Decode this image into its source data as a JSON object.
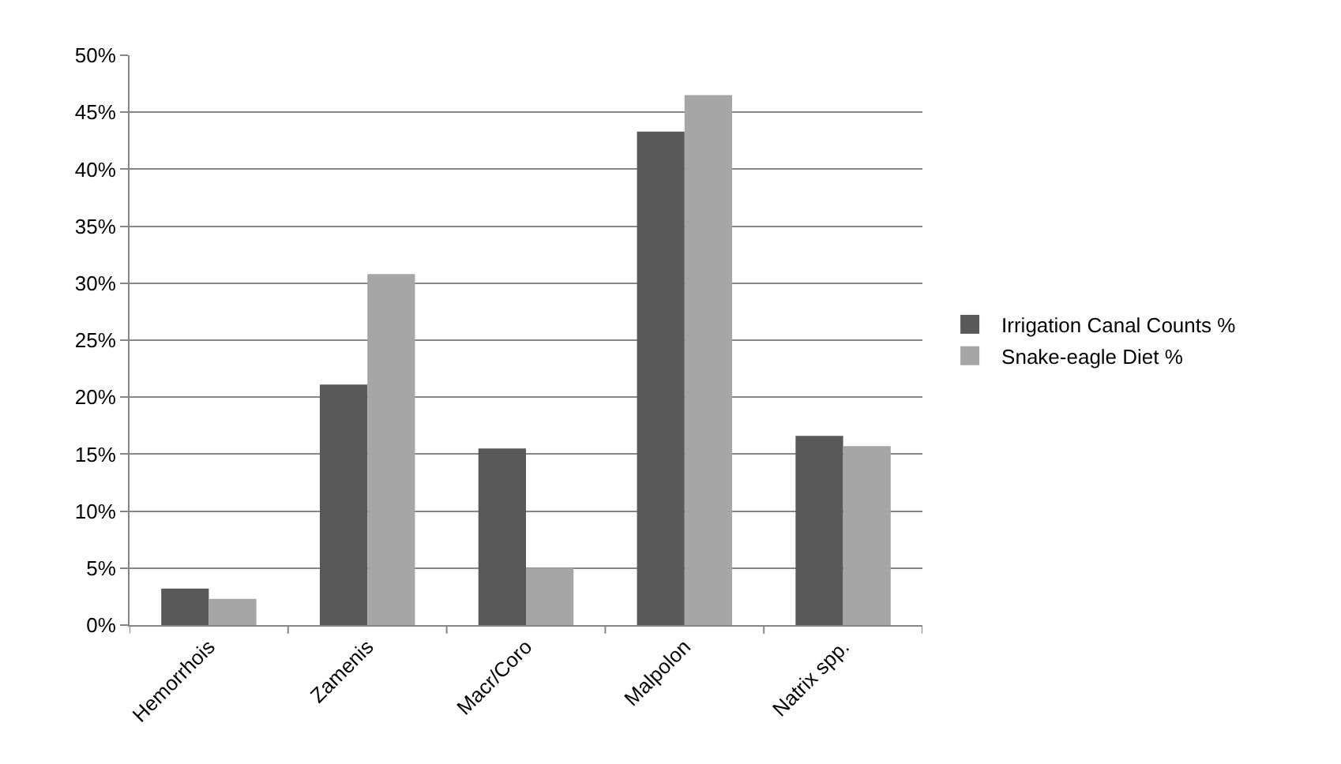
{
  "chart_data": {
    "type": "bar",
    "categories": [
      "Hemorrhois",
      "Zamenis",
      "Macr/Coro",
      "Malpolon",
      "Natrix spp."
    ],
    "series": [
      {
        "name": "Irrigation Canal Counts %",
        "color": "#595959",
        "values": [
          3.2,
          21.1,
          15.5,
          43.3,
          16.6
        ]
      },
      {
        "name": "Snake-eagle Diet %",
        "color": "#a6a6a6",
        "values": [
          2.3,
          30.8,
          5.0,
          46.5,
          15.7
        ]
      }
    ],
    "ylim": [
      0,
      50
    ],
    "yticks": [
      {
        "value": 0,
        "label": "0%"
      },
      {
        "value": 5,
        "label": "5%"
      },
      {
        "value": 10,
        "label": "10%"
      },
      {
        "value": 15,
        "label": "15%"
      },
      {
        "value": 20,
        "label": "20%"
      },
      {
        "value": 25,
        "label": "25%"
      },
      {
        "value": 30,
        "label": "30%"
      },
      {
        "value": 35,
        "label": "35%"
      },
      {
        "value": 40,
        "label": "40%"
      },
      {
        "value": 45,
        "label": "45%"
      },
      {
        "value": 50,
        "label": "50%"
      }
    ],
    "grid": "y",
    "legend": "right"
  }
}
